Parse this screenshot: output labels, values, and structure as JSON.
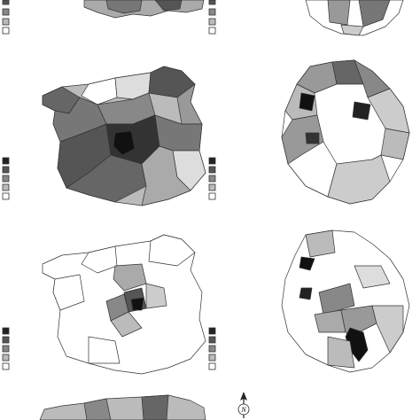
{
  "north_arrow": {
    "label": "N"
  }
}
